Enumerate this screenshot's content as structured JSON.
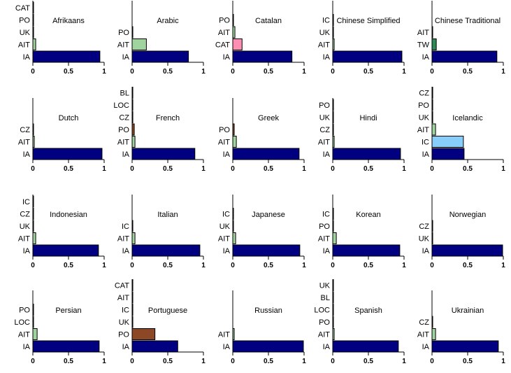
{
  "figure": {
    "colors": {
      "IA": "#000080",
      "AIT": "#9fd49f",
      "UK": "#000000",
      "PO": "#8b4726",
      "CAT": "#ff8fb2",
      "CZ": "#8a2be2",
      "TW": "#2e8b57",
      "IC": "#87cefa",
      "LOC": "#6a5acd",
      "BL": "#000000"
    },
    "x_ticks": [
      "0",
      "0.5",
      "1"
    ]
  },
  "chart_data": [
    {
      "type": "bar",
      "orientation": "horizontal",
      "title": "Afrikaans",
      "xlim": [
        0,
        1
      ],
      "categories": [
        "IA",
        "AIT",
        "UK",
        "PO",
        "CAT"
      ],
      "values": [
        0.94,
        0.04,
        0.01,
        0.005,
        0.005
      ]
    },
    {
      "type": "bar",
      "orientation": "horizontal",
      "title": "Arabic",
      "xlim": [
        0,
        1
      ],
      "categories": [
        "IA",
        "AIT",
        "PO"
      ],
      "values": [
        0.79,
        0.2,
        0.005
      ]
    },
    {
      "type": "bar",
      "orientation": "horizontal",
      "title": "Catalan",
      "xlim": [
        0,
        1
      ],
      "categories": [
        "IA",
        "CAT",
        "AIT",
        "PO"
      ],
      "values": [
        0.83,
        0.13,
        0.03,
        0.005
      ]
    },
    {
      "type": "bar",
      "orientation": "horizontal",
      "title": "Chinese Simplified",
      "xlim": [
        0,
        1
      ],
      "categories": [
        "IA",
        "AIT",
        "UK",
        "IC"
      ],
      "values": [
        0.97,
        0.02,
        0.005,
        0.005
      ]
    },
    {
      "type": "bar",
      "orientation": "horizontal",
      "title": "Chinese Traditional",
      "xlim": [
        0,
        1
      ],
      "categories": [
        "IA",
        "TW",
        "AIT"
      ],
      "values": [
        0.91,
        0.06,
        0.005
      ]
    },
    {
      "type": "bar",
      "orientation": "horizontal",
      "title": "Dutch",
      "xlim": [
        0,
        1
      ],
      "categories": [
        "IA",
        "AIT",
        "CZ"
      ],
      "values": [
        0.97,
        0.02,
        0.005
      ]
    },
    {
      "type": "bar",
      "orientation": "horizontal",
      "title": "French",
      "xlim": [
        0,
        1
      ],
      "categories": [
        "IA",
        "AIT",
        "PO",
        "CZ",
        "LOC",
        "BL"
      ],
      "values": [
        0.88,
        0.04,
        0.03,
        0.01,
        0.005,
        0.005
      ]
    },
    {
      "type": "bar",
      "orientation": "horizontal",
      "title": "Greek",
      "xlim": [
        0,
        1
      ],
      "categories": [
        "IA",
        "AIT",
        "PO"
      ],
      "values": [
        0.93,
        0.05,
        0.02
      ]
    },
    {
      "type": "bar",
      "orientation": "horizontal",
      "title": "Hindi",
      "xlim": [
        0,
        1
      ],
      "categories": [
        "IA",
        "AIT",
        "CZ",
        "UK",
        "PO"
      ],
      "values": [
        0.95,
        0.02,
        0.005,
        0.005,
        0.005
      ]
    },
    {
      "type": "bar",
      "orientation": "horizontal",
      "title": "Icelandic",
      "xlim": [
        0,
        1
      ],
      "categories": [
        "IA",
        "IC",
        "AIT",
        "UK",
        "PO",
        "CZ"
      ],
      "values": [
        0.45,
        0.44,
        0.05,
        0.01,
        0.01,
        0.01
      ]
    },
    {
      "type": "bar",
      "orientation": "horizontal",
      "title": "Indonesian",
      "xlim": [
        0,
        1
      ],
      "categories": [
        "IA",
        "AIT",
        "UK",
        "CZ",
        "IC"
      ],
      "values": [
        0.92,
        0.04,
        0.005,
        0.005,
        0.005
      ]
    },
    {
      "type": "bar",
      "orientation": "horizontal",
      "title": "Italian",
      "xlim": [
        0,
        1
      ],
      "categories": [
        "IA",
        "AIT",
        "IC"
      ],
      "values": [
        0.95,
        0.04,
        0.005
      ]
    },
    {
      "type": "bar",
      "orientation": "horizontal",
      "title": "Japanese",
      "xlim": [
        0,
        1
      ],
      "categories": [
        "IA",
        "AIT",
        "UK",
        "IC"
      ],
      "values": [
        0.94,
        0.04,
        0.005,
        0.005
      ]
    },
    {
      "type": "bar",
      "orientation": "horizontal",
      "title": "Korean",
      "xlim": [
        0,
        1
      ],
      "categories": [
        "IA",
        "AIT",
        "PO",
        "IC"
      ],
      "values": [
        0.94,
        0.05,
        0.005,
        0.005
      ]
    },
    {
      "type": "bar",
      "orientation": "horizontal",
      "title": "Norwegian",
      "xlim": [
        0,
        1
      ],
      "categories": [
        "IA",
        "UK",
        "CZ"
      ],
      "values": [
        0.99,
        0.005,
        0.005
      ]
    },
    {
      "type": "bar",
      "orientation": "horizontal",
      "title": "Persian",
      "xlim": [
        0,
        1
      ],
      "categories": [
        "IA",
        "AIT",
        "LOC",
        "PO"
      ],
      "values": [
        0.93,
        0.06,
        0.005,
        0.005
      ]
    },
    {
      "type": "bar",
      "orientation": "horizontal",
      "title": "Portuguese",
      "xlim": [
        0,
        1
      ],
      "categories": [
        "IA",
        "PO",
        "UK",
        "IC",
        "AIT",
        "CAT"
      ],
      "values": [
        0.64,
        0.32,
        0.005,
        0.005,
        0.005,
        0.005
      ]
    },
    {
      "type": "bar",
      "orientation": "horizontal",
      "title": "Russian",
      "xlim": [
        0,
        1
      ],
      "categories": [
        "IA",
        "AIT"
      ],
      "values": [
        0.99,
        0.02
      ]
    },
    {
      "type": "bar",
      "orientation": "horizontal",
      "title": "Spanish",
      "xlim": [
        0,
        1
      ],
      "categories": [
        "IA",
        "AIT",
        "PO",
        "LOC",
        "BL",
        "UK"
      ],
      "values": [
        0.92,
        0.02,
        0.005,
        0.005,
        0.005,
        0.005
      ]
    },
    {
      "type": "bar",
      "orientation": "horizontal",
      "title": "Ukrainian",
      "xlim": [
        0,
        1
      ],
      "categories": [
        "IA",
        "AIT",
        "CZ"
      ],
      "values": [
        0.93,
        0.05,
        0.005
      ]
    }
  ]
}
